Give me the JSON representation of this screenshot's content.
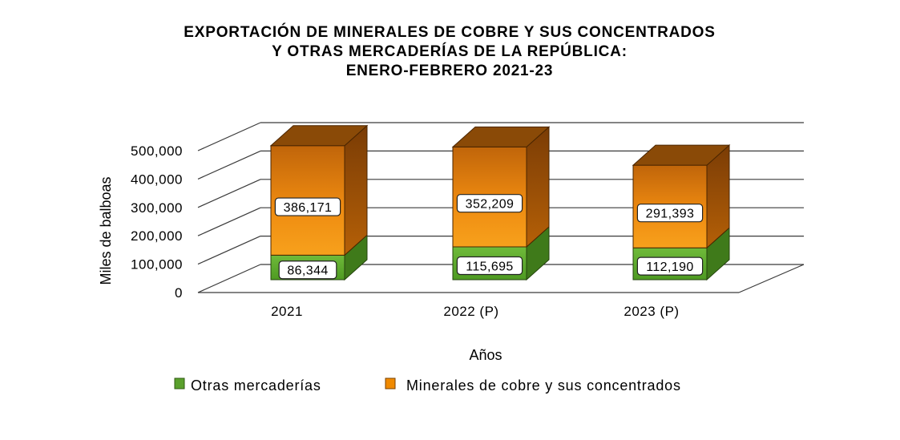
{
  "chart_data": {
    "type": "bar",
    "stacked": true,
    "three_d": true,
    "title": "EXPORTACIÓN DE MINERALES DE COBRE Y SUS CONCENTRADOS Y OTRAS MERCADERÍAS DE LA REPÚBLICA: ENERO-FEBRERO 2021-23",
    "title_lines": [
      "EXPORTACIÓN  DE MINERALES  DE COBRE  Y SUS CONCENTRADOS",
      "Y OTRAS  MERCADERÍAS  DE LA REPÚBLICA:",
      "ENERO-FEBRERO  2021-23"
    ],
    "categories": [
      "2021",
      "2022 (P)",
      "2023 (P)"
    ],
    "series": [
      {
        "name": "Otras mercaderías",
        "values": [
          86344,
          115695,
          112190
        ],
        "labels": [
          "86,344",
          "115,695",
          "112,190"
        ],
        "color": "#5aa02c"
      },
      {
        "name": "Minerales de cobre y sus concentrados",
        "values": [
          386171,
          352209,
          291393
        ],
        "labels": [
          "386,171",
          "352,209",
          "291,393"
        ],
        "color": "#f08a00"
      }
    ],
    "xlabel": "Años",
    "ylabel": "Miles de balboas",
    "ylim": [
      0,
      500000
    ],
    "y_ticks": [
      0,
      100000,
      200000,
      300000,
      400000,
      500000
    ],
    "y_tick_labels": [
      "0",
      "100,000",
      "200,000",
      "300,000",
      "400,000",
      "500,000"
    ],
    "grid": true,
    "legend_position": "bottom"
  }
}
